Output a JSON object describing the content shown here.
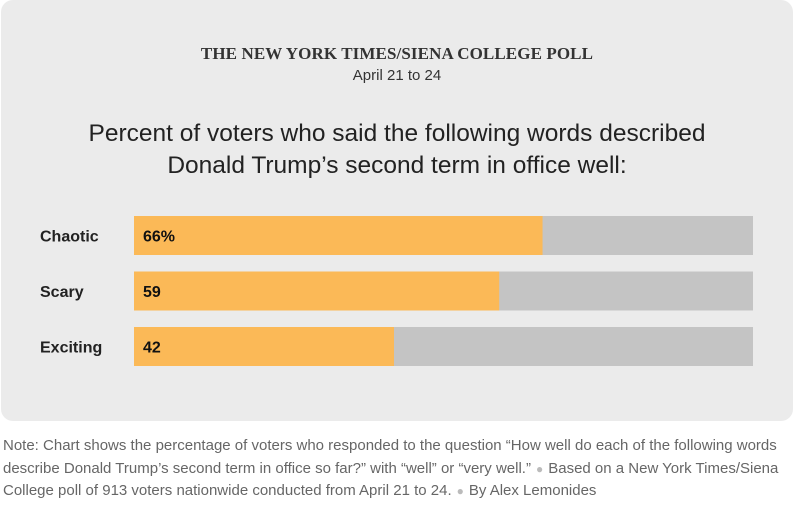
{
  "header": {
    "poll_name": "THE NEW YORK TIMES/SIENA COLLEGE POLL",
    "dates": "April 21 to 24"
  },
  "chart_data": {
    "type": "bar",
    "orientation": "horizontal",
    "title": "Percent of voters who said the following words described Donald Trump’s second term in office well:",
    "categories": [
      "Chaotic",
      "Scary",
      "Exciting"
    ],
    "values": [
      66,
      59,
      42
    ],
    "value_labels": [
      "66%",
      "59",
      "42"
    ],
    "xlim": [
      0,
      100
    ],
    "grid": false,
    "colors": {
      "bar": "#fbb957",
      "track": "#c4c4c4",
      "background": "#ebebeb"
    }
  },
  "note": {
    "text": "Note: Chart shows the percentage of voters who responded to the question “How well do each of the following words describe Donald Trump’s second term in office so far?” with “well” or “very well.”",
    "source": "Based on a New York Times/Siena College poll of 913 voters nationwide conducted from April 21 to 24.",
    "byline": "By Alex Lemonides"
  }
}
